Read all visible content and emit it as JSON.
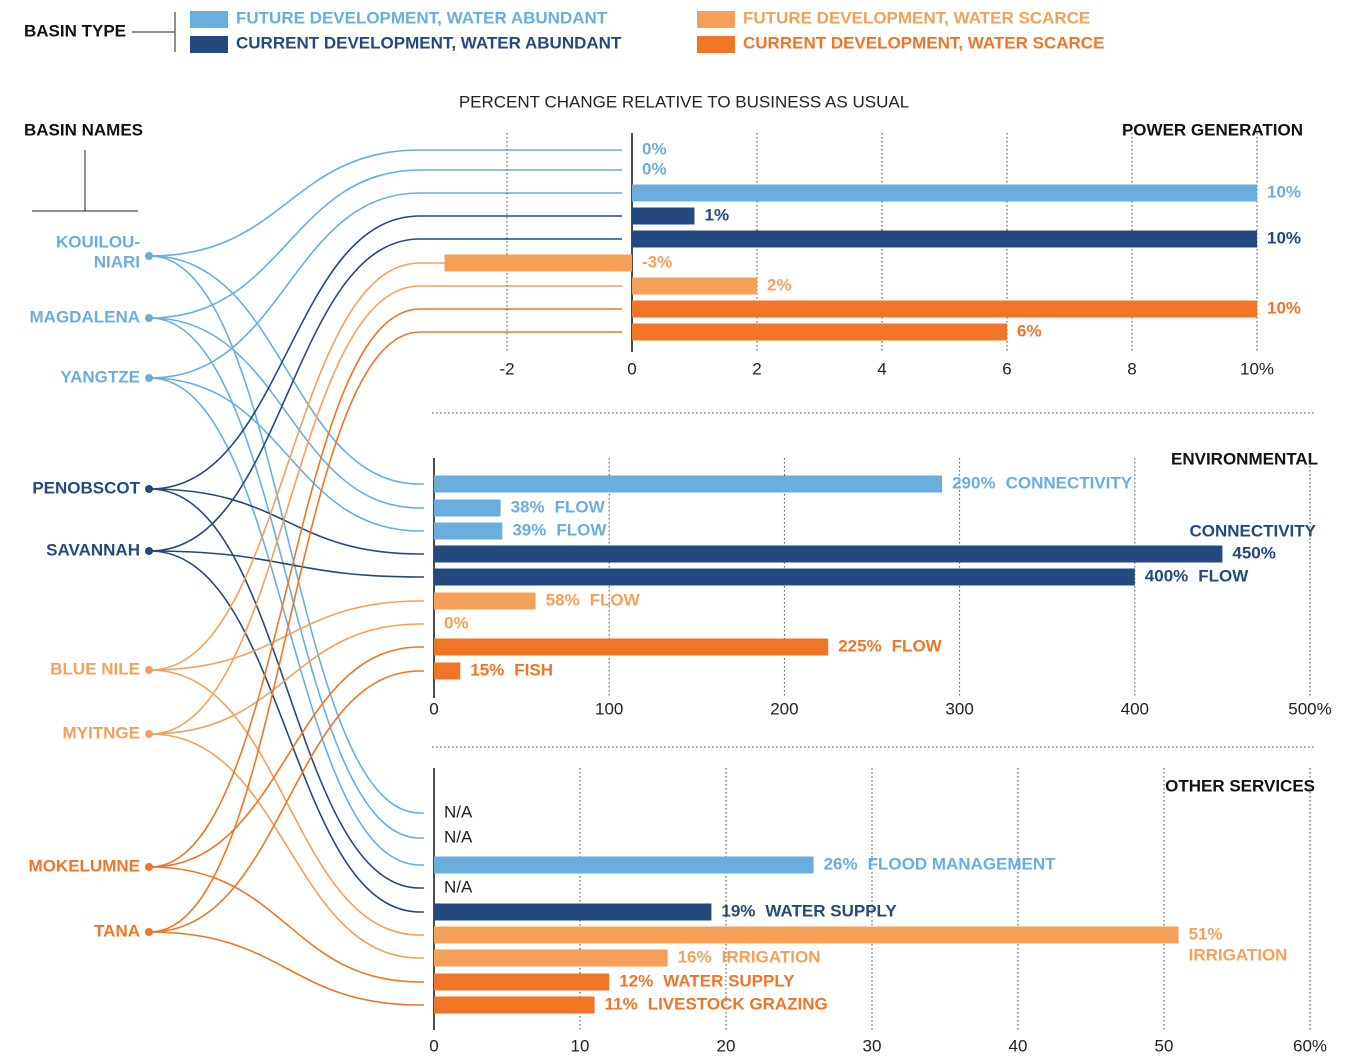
{
  "legend": {
    "title": "BASIN TYPE",
    "items": [
      {
        "name": "FUTURE DEVELOPMENT, WATER ABUNDANT",
        "color": "#6aaee0"
      },
      {
        "name": "CURRENT DEVELOPMENT, WATER ABUNDANT",
        "color": "#24497f"
      },
      {
        "name": "FUTURE DEVELOPMENT, WATER SCARCE",
        "color": "#f5a059"
      },
      {
        "name": "CURRENT DEVELOPMENT, WATER SCARCE",
        "color": "#f07526"
      }
    ]
  },
  "subtitle": "PERCENT CHANGE RELATIVE TO BUSINESS AS USUAL",
  "basins": {
    "title": "BASIN NAMES",
    "items": [
      {
        "lines": [
          "KOUILOU-",
          "NIARI"
        ],
        "color": "#6aaee0"
      },
      {
        "lines": [
          "MAGDALENA"
        ],
        "color": "#6aaee0"
      },
      {
        "lines": [
          "YANGTZE"
        ],
        "color": "#6aaee0"
      },
      {
        "lines": [
          "PENOBSCOT"
        ],
        "color": "#24497f"
      },
      {
        "lines": [
          "SAVANNAH"
        ],
        "color": "#24497f"
      },
      {
        "lines": [
          "BLUE NILE"
        ],
        "color": "#f5a059"
      },
      {
        "lines": [
          "MYITNGE"
        ],
        "color": "#f5a059"
      },
      {
        "lines": [
          "MOKELUMNE"
        ],
        "color": "#f07526"
      },
      {
        "lines": [
          "TANA"
        ],
        "color": "#f07526"
      }
    ]
  },
  "chart_data": [
    {
      "type": "bar",
      "title": "POWER GENERATION",
      "values": [
        0,
        0,
        10,
        1,
        10,
        -3,
        2,
        10,
        6
      ],
      "value_labels": [
        "0%",
        "0%",
        "10%",
        "1%",
        "10%",
        "-3%",
        "2%",
        "10%",
        "6%"
      ],
      "xlim": [
        -3.2,
        10
      ],
      "xticks": [
        -2,
        0,
        2,
        4,
        6,
        8,
        {
          "value": 10,
          "label": "10%"
        }
      ],
      "grid": true
    },
    {
      "type": "bar",
      "title": "ENVIRONMENTAL",
      "values": [
        290,
        38,
        39,
        450,
        400,
        58,
        0,
        225,
        15
      ],
      "value_labels": [
        "290%",
        "38%",
        "39%",
        "450%",
        "400%",
        "58%",
        "0%",
        "225%",
        "15%"
      ],
      "annotations": [
        "CONNECTIVITY",
        "FLOW",
        "FLOW",
        "CONNECTIVITY",
        "FLOW",
        "FLOW",
        null,
        "FLOW",
        "FISH"
      ],
      "xlim": [
        0,
        500
      ],
      "xticks": [
        0,
        100,
        200,
        300,
        400,
        {
          "value": 500,
          "label": "500%"
        }
      ],
      "grid": true
    },
    {
      "type": "bar",
      "title": "OTHER SERVICES",
      "values": [
        null,
        null,
        26,
        null,
        19,
        51,
        16,
        12,
        11
      ],
      "value_labels": [
        "N/A",
        "N/A",
        "26%",
        "N/A",
        "19%",
        "51%",
        "16%",
        "12%",
        "11%"
      ],
      "annotations": [
        null,
        null,
        "FLOOD MANAGEMENT",
        null,
        "WATER SUPPLY",
        "IRRIGATION",
        "IRRIGATION",
        "WATER SUPPLY",
        "LIVESTOCK GRAZING"
      ],
      "xlim": [
        0,
        60
      ],
      "xticks": [
        0,
        10,
        20,
        30,
        40,
        50,
        {
          "value": 60,
          "label": "60%"
        }
      ],
      "grid": true
    }
  ]
}
